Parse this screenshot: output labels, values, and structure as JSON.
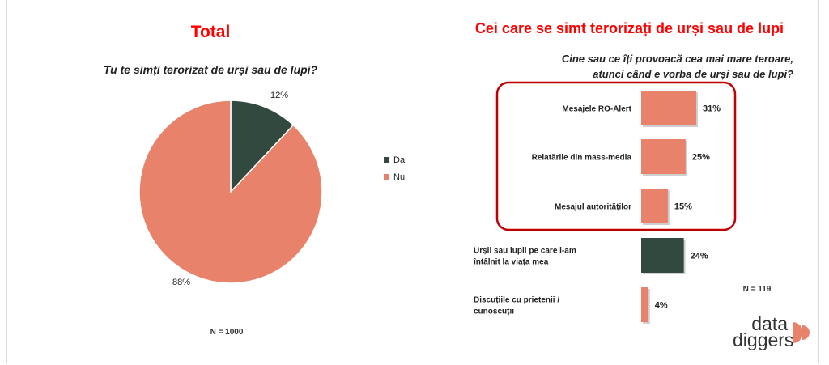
{
  "left": {
    "title": "Total",
    "subtitle": "Tu te simți terorizat de urși sau de lupi?",
    "n_label": "N = 1000"
  },
  "right": {
    "title": "Cei care se simt terorizați de urși sau de lupi",
    "subtitle_line1": "Cine sau ce îți provoacă cea mai mare teroare,",
    "subtitle_line2": "atunci când e vorba de urși sau de lupi?",
    "n_label": "N = 119"
  },
  "logo": {
    "line1": "data",
    "line2": "diggers"
  },
  "colors": {
    "accent": "#ff0000",
    "salmon": "#e8826a",
    "dark_green": "#31493f",
    "highlight_box": "#c00000"
  },
  "chart_data": [
    {
      "type": "pie",
      "title": "Tu te simți terorizat de urși sau de lupi?",
      "labels": [
        "Da",
        "Nu"
      ],
      "values": [
        12,
        88
      ],
      "value_labels": [
        "12%",
        "88%"
      ],
      "colors": [
        "#31493f",
        "#e8826a"
      ],
      "legend": "right"
    },
    {
      "type": "bar",
      "orientation": "horizontal",
      "title": "Cine sau ce îți provoacă cea mai mare teroare, atunci când e vorba de urși sau de lupi?",
      "categories": [
        "Mesajele RO-Alert",
        "Relatările din mass-media",
        "Mesajul autorităților",
        "Urșii sau lupii pe care i-am întâlnit la viața mea",
        "Discuțiile cu prietenii / cunoscuții"
      ],
      "values": [
        31,
        25,
        15,
        24,
        4
      ],
      "value_labels": [
        "31%",
        "25%",
        "15%",
        "24%",
        "4%"
      ],
      "colors": [
        "#e8826a",
        "#e8826a",
        "#e8826a",
        "#31493f",
        "#e8826a"
      ],
      "highlighted_categories": [
        "Mesajele RO-Alert",
        "Relatările din mass-media",
        "Mesajul autorităților"
      ]
    }
  ]
}
